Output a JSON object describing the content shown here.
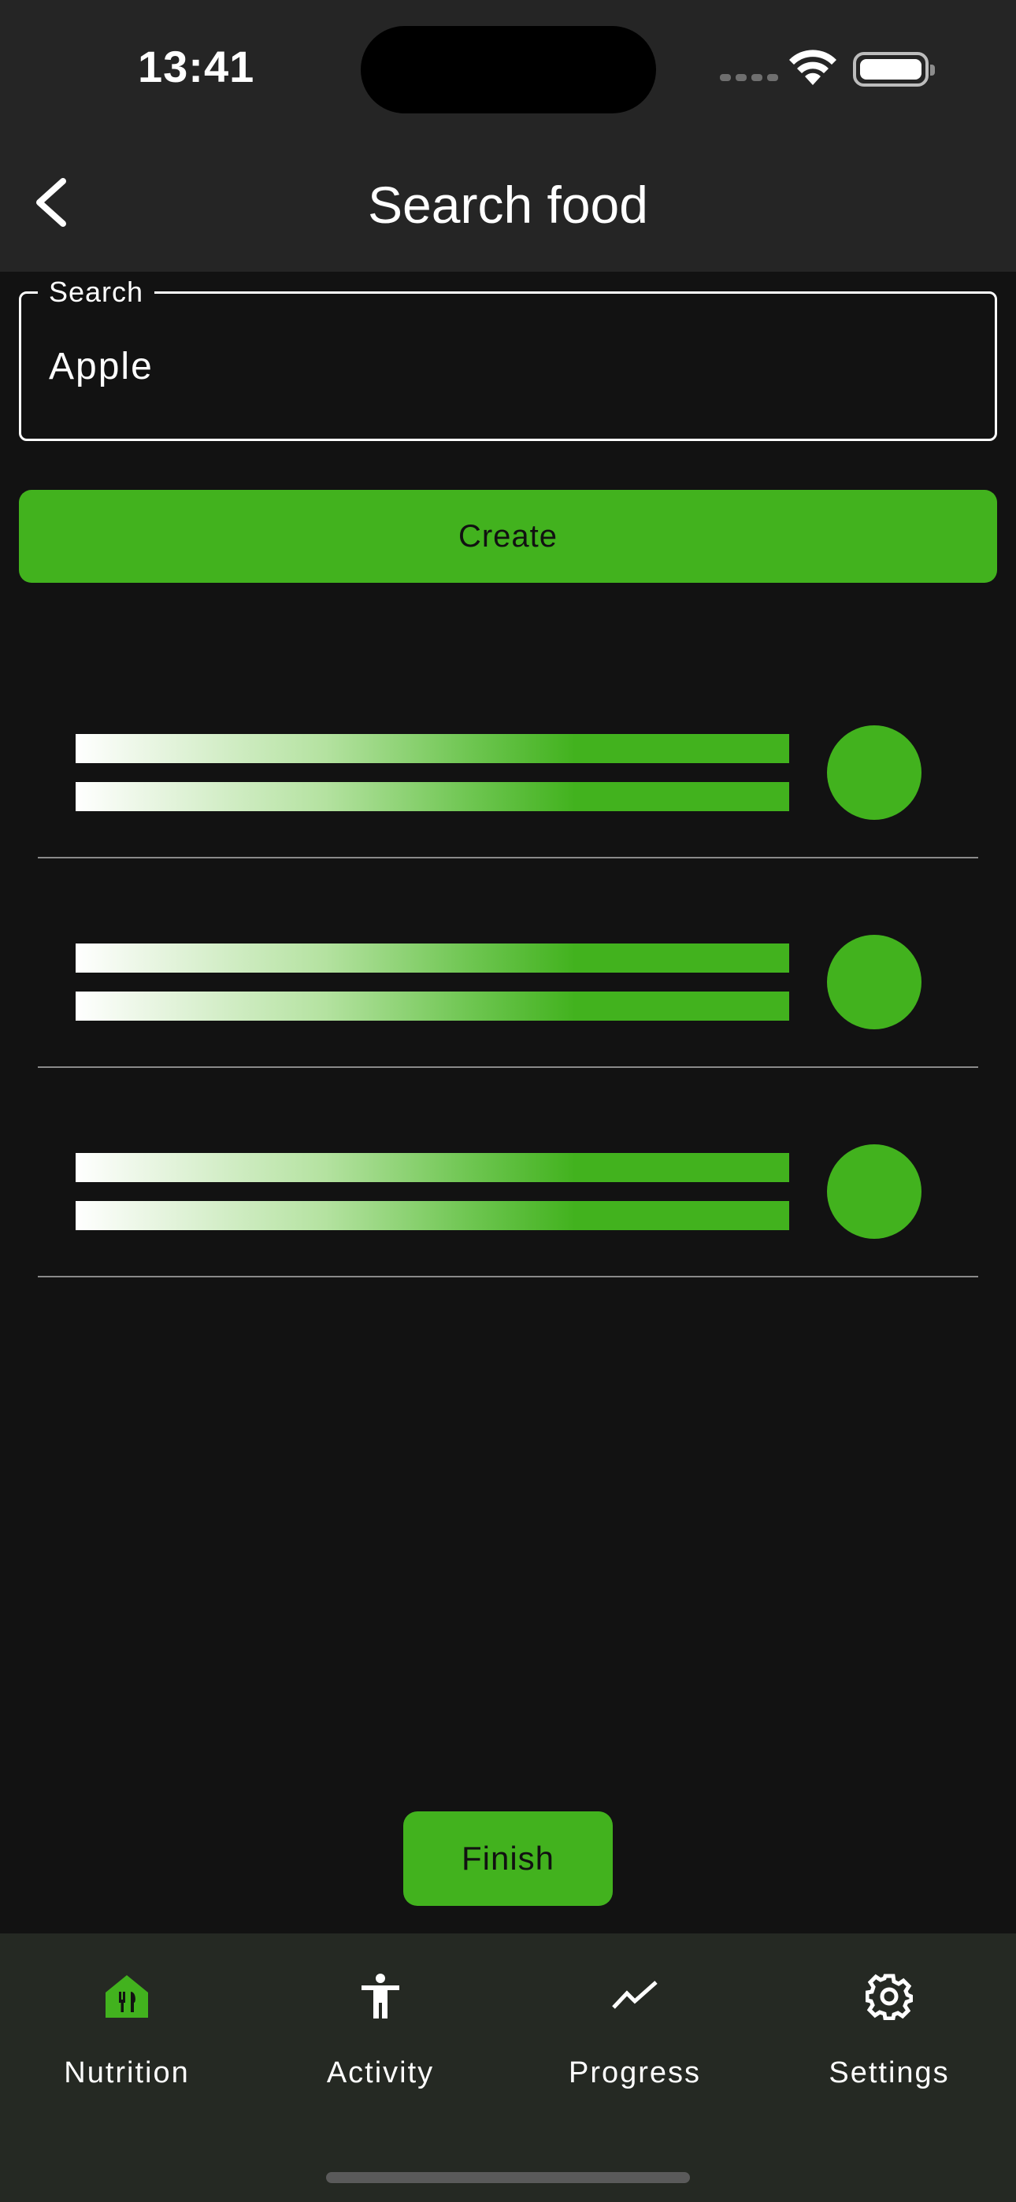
{
  "status_bar": {
    "time": "13:41"
  },
  "app_bar": {
    "title": "Search food"
  },
  "search": {
    "label": "Search",
    "value": "Apple"
  },
  "buttons": {
    "create": "Create",
    "finish": "Finish"
  },
  "colors": {
    "accent": "#42b21e",
    "background": "#121212",
    "appbar": "#252525",
    "navbar": "#252923"
  },
  "nav": {
    "items": [
      {
        "label": "Nutrition",
        "icon": "nutrition-icon",
        "active": true
      },
      {
        "label": "Activity",
        "icon": "accessibility-icon",
        "active": false
      },
      {
        "label": "Progress",
        "icon": "trending-icon",
        "active": false
      },
      {
        "label": "Settings",
        "icon": "gear-icon",
        "active": false
      }
    ]
  }
}
